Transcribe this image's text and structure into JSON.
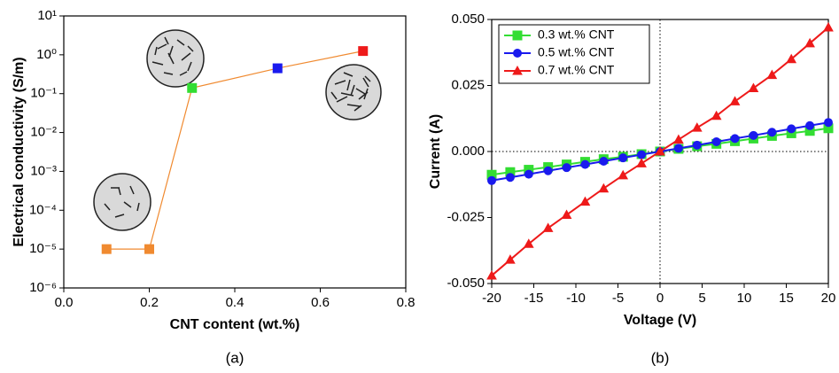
{
  "chart_data": [
    {
      "type": "line",
      "log_y": true,
      "xlabel": "CNT content (wt.%)",
      "ylabel": "Electrical conductivity (S/m)",
      "caption": "(a)",
      "xlim": [
        0,
        0.8
      ],
      "xticks": [
        {
          "value": 0,
          "label": "0.0"
        },
        0.2,
        0.4,
        0.6,
        0.8
      ],
      "ylim": [
        1e-06,
        10
      ],
      "yticks": [
        {
          "value": 1e-06,
          "label": "10⁻⁶"
        },
        {
          "value": 1e-05,
          "label": "10⁻⁵"
        },
        {
          "value": 0.0001,
          "label": "10⁻⁴"
        },
        {
          "value": 0.001,
          "label": "10⁻³"
        },
        {
          "value": 0.01,
          "label": "10⁻²"
        },
        {
          "value": 0.1,
          "label": "10⁻¹"
        },
        {
          "value": 1,
          "label": "10⁰"
        },
        {
          "value": 10,
          "label": "10¹"
        }
      ],
      "series": [
        {
          "color": "#f08a30",
          "marker": "square",
          "point_colors": [
            "#f08a30",
            "#f08a30",
            "#33dd33",
            "#1a1aee",
            "#ee1a1a"
          ],
          "x": [
            0.1,
            0.2,
            0.3,
            0.5,
            0.7
          ],
          "values": [
            1e-05,
            1e-05,
            0.14,
            0.45,
            1.25
          ]
        }
      ]
    },
    {
      "type": "line",
      "xlabel": "Voltage (V)",
      "ylabel": "Current (A)",
      "caption": "(b)",
      "zero_lines": true,
      "legend": "upper-left",
      "xlim": [
        -20,
        20
      ],
      "xticks": [
        -20,
        -15,
        -10,
        -5,
        0,
        5,
        10,
        15,
        20
      ],
      "ylim": [
        -0.05,
        0.05
      ],
      "yticks": [
        {
          "value": -0.05,
          "label": "-0.050"
        },
        {
          "value": -0.025,
          "label": "-0.025"
        },
        {
          "value": 0,
          "label": "0.000"
        },
        {
          "value": 0.025,
          "label": "0.025"
        },
        {
          "value": 0.05,
          "label": "0.050"
        }
      ],
      "x": [
        -20,
        -17.8,
        -15.6,
        -13.3,
        -11.1,
        -8.9,
        -6.7,
        -4.4,
        -2.2,
        0,
        2.2,
        4.4,
        6.7,
        8.9,
        11.1,
        13.3,
        15.6,
        17.8,
        20
      ],
      "series": [
        {
          "name": "0.3 wt.% CNT",
          "color": "#33dd33",
          "marker": "square",
          "values": [
            -0.0088,
            -0.0078,
            -0.0069,
            -0.0059,
            -0.0049,
            -0.0039,
            -0.0029,
            -0.002,
            -0.001,
            0,
            0.001,
            0.002,
            0.0029,
            0.0039,
            0.0049,
            0.0059,
            0.0069,
            0.0078,
            0.0088
          ]
        },
        {
          "name": "0.5 wt.% CNT",
          "color": "#1a1aee",
          "marker": "circle",
          "values": [
            -0.011,
            -0.0098,
            -0.0086,
            -0.0073,
            -0.0061,
            -0.0049,
            -0.0037,
            -0.0024,
            -0.0012,
            0,
            0.0012,
            0.0024,
            0.0037,
            0.0049,
            0.0061,
            0.0073,
            0.0086,
            0.0098,
            0.011
          ]
        },
        {
          "name": "0.7 wt.% CNT",
          "color": "#ee1a1a",
          "marker": "triangle",
          "values": [
            -0.047,
            -0.041,
            -0.035,
            -0.029,
            -0.024,
            -0.019,
            -0.014,
            -0.009,
            -0.0045,
            0,
            0.0045,
            0.009,
            0.0135,
            0.019,
            0.024,
            0.029,
            0.035,
            0.041,
            0.047
          ]
        }
      ]
    }
  ]
}
